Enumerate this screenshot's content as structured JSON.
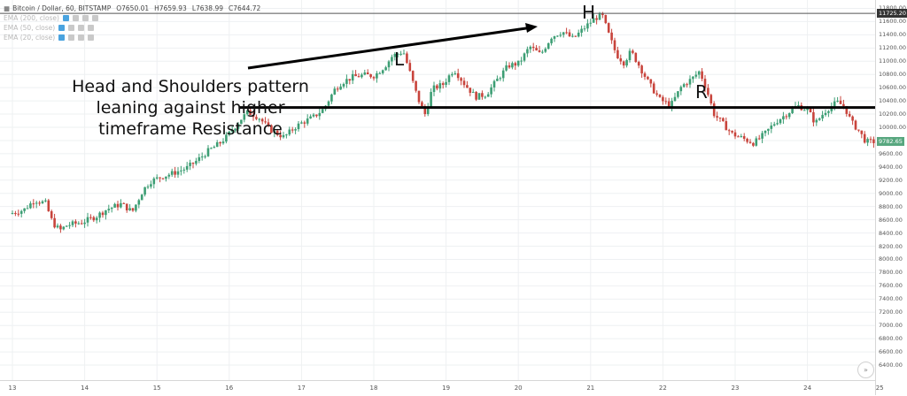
{
  "legend": {
    "symbol": "Bitcoin / Dollar, 60, BITSTAMP",
    "open": "O7650.01",
    "high": "H7659.93",
    "low": "L7638.99",
    "close": "C7644.72",
    "indicators": [
      "EMA (200, close)",
      "EMA (50, close)",
      "EMA (20, close)"
    ]
  },
  "annotations": {
    "main_note_lines": [
      "Head and Shoulders pattern",
      "leaning against higher",
      "timeframe Resistance"
    ],
    "left_shoulder": "L",
    "head": "H",
    "right_shoulder": "R"
  },
  "price_labels": {
    "resistance": "11725.20",
    "last": "9782.65"
  },
  "colors": {
    "up": "#3d9e74",
    "down": "#c8443c",
    "resistance_label_bg": "#333333",
    "last_label_bg": "#58a77f"
  },
  "chart_data": {
    "type": "candlestick",
    "ylim": [
      6200,
      11900
    ],
    "yticks": [
      "11800.00",
      "11600.00",
      "11400.00",
      "11200.00",
      "11000.00",
      "10800.00",
      "10600.00",
      "10400.00",
      "10200.00",
      "10000.00",
      "9800.00",
      "9600.00",
      "9400.00",
      "9200.00",
      "9000.00",
      "8800.00",
      "8600.00",
      "8400.00",
      "8200.00",
      "8000.00",
      "7800.00",
      "7600.00",
      "7400.00",
      "7200.00",
      "7000.00",
      "6800.00",
      "6600.00",
      "6400.00"
    ],
    "xticks": [
      "13",
      "14",
      "15",
      "16",
      "17",
      "18",
      "19",
      "20",
      "21",
      "22",
      "23",
      "24",
      "25"
    ],
    "horizontal_levels": [
      {
        "price": 11725.2
      },
      {
        "price": 10300
      }
    ],
    "close_path": [
      [
        13.0,
        8690
      ],
      [
        13.2,
        8750
      ],
      [
        13.35,
        8900
      ],
      [
        13.5,
        8850
      ],
      [
        13.6,
        8550
      ],
      [
        13.7,
        8440
      ],
      [
        13.8,
        8520
      ],
      [
        14.0,
        8560
      ],
      [
        14.2,
        8650
      ],
      [
        14.35,
        8760
      ],
      [
        14.55,
        8840
      ],
      [
        14.7,
        8720
      ],
      [
        14.85,
        9050
      ],
      [
        14.95,
        9180
      ],
      [
        15.1,
        9250
      ],
      [
        15.25,
        9300
      ],
      [
        15.45,
        9380
      ],
      [
        15.6,
        9500
      ],
      [
        15.75,
        9640
      ],
      [
        15.9,
        9750
      ],
      [
        16.0,
        9850
      ],
      [
        16.1,
        9980
      ],
      [
        16.2,
        10120
      ],
      [
        16.3,
        10230
      ],
      [
        16.45,
        10150
      ],
      [
        16.6,
        9970
      ],
      [
        16.8,
        9850
      ],
      [
        16.95,
        10000
      ],
      [
        17.05,
        10070
      ],
      [
        17.2,
        10150
      ],
      [
        17.35,
        10280
      ],
      [
        17.5,
        10570
      ],
      [
        17.6,
        10680
      ],
      [
        17.75,
        10760
      ],
      [
        17.9,
        10790
      ],
      [
        18.05,
        10780
      ],
      [
        18.2,
        10930
      ],
      [
        18.3,
        11080
      ],
      [
        18.45,
        11150
      ],
      [
        18.55,
        10800
      ],
      [
        18.65,
        10440
      ],
      [
        18.75,
        10200
      ],
      [
        18.85,
        10580
      ],
      [
        19.0,
        10650
      ],
      [
        19.15,
        10880
      ],
      [
        19.3,
        10650
      ],
      [
        19.45,
        10460
      ],
      [
        19.6,
        10500
      ],
      [
        19.75,
        10720
      ],
      [
        19.9,
        10930
      ],
      [
        20.05,
        10970
      ],
      [
        20.2,
        11220
      ],
      [
        20.35,
        11100
      ],
      [
        20.5,
        11370
      ],
      [
        20.65,
        11450
      ],
      [
        20.8,
        11340
      ],
      [
        20.95,
        11500
      ],
      [
        21.1,
        11650
      ],
      [
        21.2,
        11700
      ],
      [
        21.3,
        11380
      ],
      [
        21.4,
        11100
      ],
      [
        21.5,
        10980
      ],
      [
        21.6,
        11150
      ],
      [
        21.7,
        10960
      ],
      [
        21.85,
        10660
      ],
      [
        22.0,
        10420
      ],
      [
        22.15,
        10330
      ],
      [
        22.3,
        10620
      ],
      [
        22.45,
        10740
      ],
      [
        22.55,
        10850
      ],
      [
        22.65,
        10560
      ],
      [
        22.75,
        10200
      ],
      [
        22.9,
        10020
      ],
      [
        23.0,
        9900
      ],
      [
        23.15,
        9830
      ],
      [
        23.3,
        9760
      ],
      [
        23.45,
        9900
      ],
      [
        23.6,
        10080
      ],
      [
        23.75,
        10200
      ],
      [
        23.9,
        10330
      ],
      [
        24.05,
        10260
      ],
      [
        24.15,
        10060
      ],
      [
        24.3,
        10260
      ],
      [
        24.45,
        10380
      ],
      [
        24.55,
        10320
      ],
      [
        24.65,
        10080
      ],
      [
        24.75,
        9950
      ],
      [
        24.85,
        9780
      ],
      [
        24.95,
        9782
      ]
    ]
  }
}
